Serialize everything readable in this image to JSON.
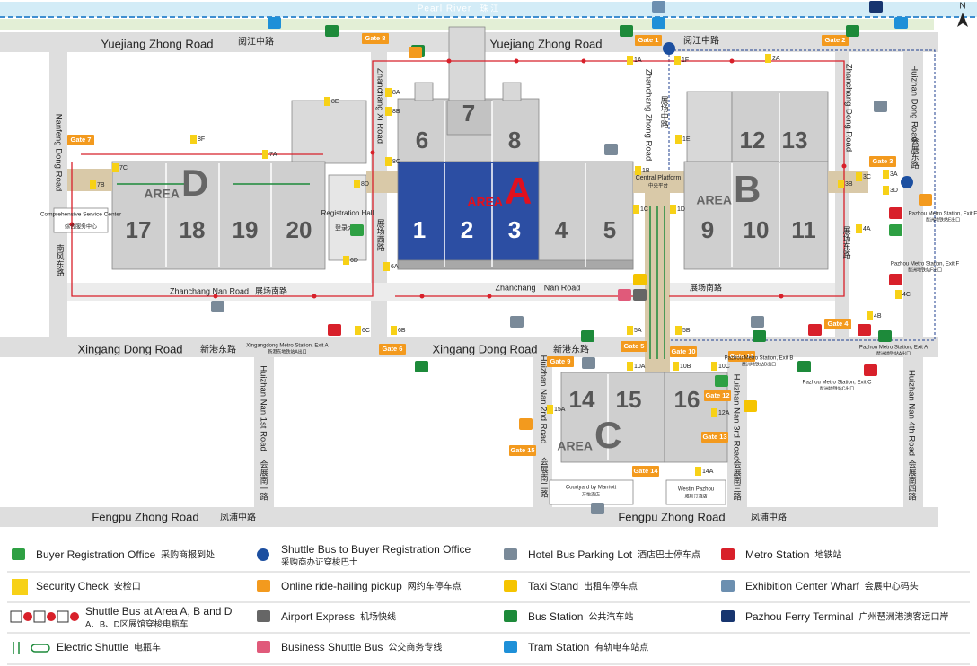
{
  "river": {
    "en": "Pearl River",
    "cn": "珠 江"
  },
  "north": "N",
  "roads": [
    "Yuejiang Zhong Road",
    "阅江中路",
    "Yuejiang Zhong Road",
    "阅江中路",
    "Xingang Dong Road",
    "新港东路",
    "Xingang Dong Road",
    "新港东路",
    "Fengpu Zhong Road",
    "凤浦中路",
    "Fengpu Zhong Road",
    "凤浦中路",
    "Nanfeng Dong Road",
    "南风东路",
    "Zhanchang Xi Road",
    "展场西路",
    "Zhanchang Zhong Road",
    "展场中路",
    "Zhanchang Dong Road",
    "展场东路",
    "Huizhan Dong Road",
    "会展东路",
    "Zhanchang Nan Road",
    "展场南路",
    "Zhanchang",
    "Nan Road",
    "展场南路",
    "Huizhan Nan 1st Road",
    "会展南一路",
    "Huizhan Nan 2nd Road",
    "会展南二路",
    "Huizhan Nan 3rd Road",
    "会展南三路",
    "Huizhan Nan 4th Road",
    "会展南四路"
  ],
  "halls": [
    "1",
    "2",
    "3",
    "4",
    "5",
    "6",
    "7",
    "8",
    "9",
    "10",
    "11",
    "12",
    "13",
    "14",
    "15",
    "16",
    "17",
    "18",
    "19",
    "20"
  ],
  "areas": [
    {
      "prefix": "AREA",
      "letter": "A"
    },
    {
      "prefix": "AREA",
      "letter": "B"
    },
    {
      "prefix": "AREA",
      "letter": "C"
    },
    {
      "prefix": "AREA",
      "letter": "D"
    }
  ],
  "gates": [
    "Gate 1",
    "Gate 2",
    "Gate 3",
    "Gate 4",
    "Gate 5",
    "Gate 6",
    "Gate 7",
    "Gate 8",
    "Gate 9",
    "Gate 10",
    "Gate 11",
    "Gate 12",
    "Gate 13",
    "Gate 14",
    "Gate 15"
  ],
  "security_checks": [
    "8A",
    "8B",
    "8C",
    "8D",
    "8E",
    "8F",
    "7A",
    "7B",
    "7C",
    "6A",
    "6B",
    "6C",
    "6D",
    "1A",
    "1B",
    "1C",
    "1D",
    "1E",
    "1F",
    "2A",
    "3A",
    "3B",
    "3C",
    "3D",
    "4A",
    "4B",
    "4C",
    "5A",
    "5B",
    "10A",
    "10B",
    "10C",
    "12A",
    "14A",
    "15A"
  ],
  "places": [
    {
      "en": "Central Platform",
      "cn": "中央平台"
    },
    {
      "en": "Registration Hall",
      "cn": "登录大厅"
    },
    {
      "en": "Comprehensive Service Center",
      "cn": "综合服务中心"
    },
    {
      "en": "Courtyard by Marriott",
      "cn": "万怡酒店"
    },
    {
      "en": "Westin Pazhou",
      "cn": "威斯汀酒店"
    }
  ],
  "metro_stations": [
    {
      "en": "Xingangdong Metro Station, Exit A",
      "cn": "新港东地铁站A出口"
    },
    {
      "en": "Pazhou Metro Station, Exit B",
      "cn": "琶洲地铁站B出口"
    },
    {
      "en": "Pazhou Metro Station, Exit A",
      "cn": "琶洲地铁站A出口"
    },
    {
      "en": "Pazhou Metro Station, Exit C",
      "cn": "琶洲地铁站C出口"
    },
    {
      "en": "Pazhou Metro Station, Exit E",
      "cn": "琶洲地铁站E出口"
    },
    {
      "en": "Pazhou Metro Station, Exit F",
      "cn": "琶洲地铁站F出口"
    }
  ],
  "legend": [
    {
      "en": "Buyer Registration Office",
      "cn": "采购商报到处"
    },
    {
      "en": "Shuttle Bus to Buyer Registration Office",
      "cn": "采购商办证穿梭巴士"
    },
    {
      "en": "Hotel Bus Parking Lot",
      "cn": "酒店巴士停车点"
    },
    {
      "en": "Metro Station",
      "cn": "地铁站"
    },
    {
      "en": "Security Check",
      "cn": "安检口"
    },
    {
      "en": "Online ride-hailing pickup",
      "cn": "网约车停车点"
    },
    {
      "en": "Taxi Stand",
      "cn": "出租车停车点"
    },
    {
      "en": "Exhibition Center Wharf",
      "cn": "会展中心码头"
    },
    {
      "en": "Shuttle Bus at Area A, B and D",
      "cn": "A、B、D区展馆穿梭电瓶车"
    },
    {
      "en": "Airport Express",
      "cn": "机场快线"
    },
    {
      "en": "Bus Station",
      "cn": "公共汽车站"
    },
    {
      "en": "Pazhou Ferry Terminal",
      "cn": "广州琶洲港澳客运口岸"
    },
    {
      "en": "Electric Shuttle",
      "cn": "电瓶车"
    },
    {
      "en": "Business Shuttle Bus",
      "cn": "公交商务专线"
    },
    {
      "en": "Tram Station",
      "cn": "有轨电车站点"
    }
  ]
}
